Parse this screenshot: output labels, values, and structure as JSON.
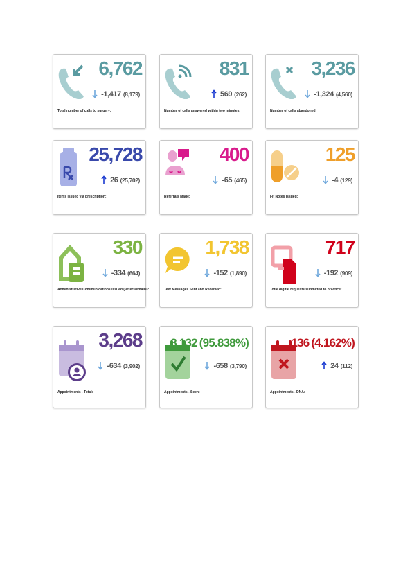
{
  "cards": [
    {
      "value": "6,762",
      "change": "-1,417",
      "previous": "(8,179)",
      "label": "Total number of calls to surgery:",
      "trend": "down",
      "color": "#5a9ba1"
    },
    {
      "value": "831",
      "change": "569",
      "previous": "(262)",
      "label": "Number of calls answered within two minutes:",
      "trend": "up",
      "color": "#5a9ba1"
    },
    {
      "value": "3,236",
      "change": "-1,324",
      "previous": "(4,560)",
      "label": "Number of calls abandoned:",
      "trend": "down",
      "color": "#5a9ba1"
    },
    {
      "value": "25,728",
      "change": "26",
      "previous": "(25,702)",
      "label": "Items issued via prescription:",
      "trend": "up",
      "color": "#3949ab"
    },
    {
      "value": "400",
      "change": "-65",
      "previous": "(465)",
      "label": "Referrals Made:",
      "trend": "down",
      "color": "#d81b8c"
    },
    {
      "value": "125",
      "change": "-4",
      "previous": "(129)",
      "label": "Fit Notes Issued:",
      "trend": "down",
      "color": "#ef9f2a"
    },
    {
      "value": "330",
      "change": "-334",
      "previous": "(664)",
      "label": "Administrative Communications Issued (letters/emails):",
      "trend": "down",
      "color": "#7cb342"
    },
    {
      "value": "1,738",
      "change": "-152",
      "previous": "(1,890)",
      "label": "Text Messages Sent and Received:",
      "trend": "down",
      "color": "#f2c530"
    },
    {
      "value": "717",
      "change": "-192",
      "previous": "(909)",
      "label": "Total digital requests submitted to practice:",
      "trend": "down",
      "color": "#d0021b"
    },
    {
      "value": "3,268",
      "change": "-634",
      "previous": "(3,902)",
      "label": "Appointments - Total:",
      "trend": "down",
      "color": "#5c3d8a"
    },
    {
      "value": "3,132",
      "percent": "(95.838%)",
      "change": "-658",
      "previous": "(3,790)",
      "label": "Appointments - Seen:",
      "trend": "down",
      "color": "#3f9a3c"
    },
    {
      "value": "136",
      "percent": "(4.162%)",
      "change": "24",
      "previous": "(112)",
      "label": "Appointments - DNA:",
      "trend": "up",
      "color": "#c0161f"
    }
  ]
}
